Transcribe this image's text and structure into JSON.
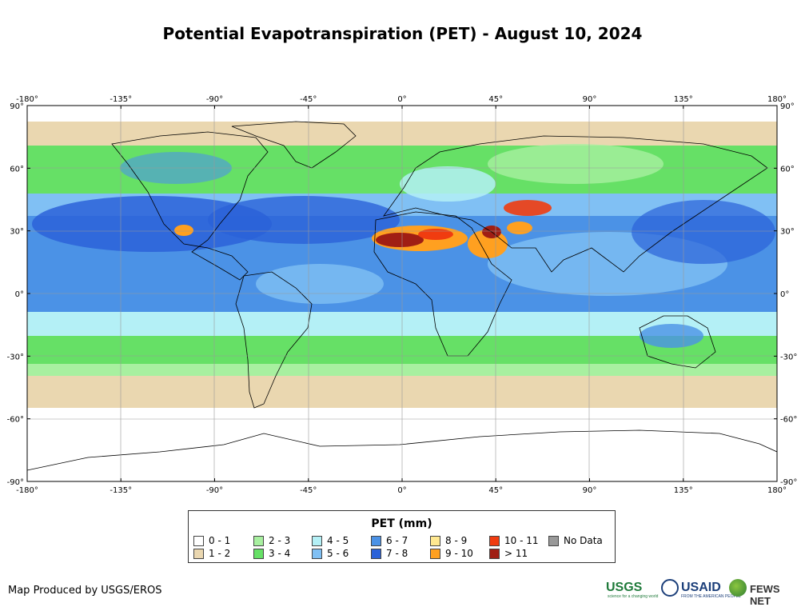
{
  "title": "Potential Evapotranspiration (PET) - August 10, 2024",
  "map": {
    "lon_ticks": [
      "-180°",
      "-135°",
      "-90°",
      "-45°",
      "0°",
      "45°",
      "90°",
      "135°",
      "180°"
    ],
    "lat_ticks": [
      "90°",
      "60°",
      "30°",
      "0°",
      "-30°",
      "-60°",
      "-90°"
    ]
  },
  "legend": {
    "title": "PET (mm)",
    "items": [
      {
        "label": "0 - 1",
        "color": "#ffffff"
      },
      {
        "label": "1 - 2",
        "color": "#ead7b0"
      },
      {
        "label": "2 - 3",
        "color": "#a8f0a0"
      },
      {
        "label": "3 - 4",
        "color": "#66e066"
      },
      {
        "label": "4 - 5",
        "color": "#b4f0f6"
      },
      {
        "label": "5 - 6",
        "color": "#80c0f4"
      },
      {
        "label": "6 - 7",
        "color": "#4b92e6"
      },
      {
        "label": "7 - 8",
        "color": "#2b62d8"
      },
      {
        "label": "8 - 9",
        "color": "#ffe890"
      },
      {
        "label": "9 - 10",
        "color": "#ffa020"
      },
      {
        "label": "10 - 11",
        "color": "#f03c10"
      },
      {
        "label": "> 11",
        "color": "#a01e14"
      },
      {
        "label": "No Data",
        "color": "#999999"
      }
    ]
  },
  "credit": "Map Produced by USGS/EROS",
  "logos": {
    "usgs": "USGS",
    "usgs_tagline": "science for a changing world",
    "usaid": "USAID",
    "usaid_tagline": "FROM THE AMERICAN PEOPLE",
    "fews": "FEWS NET"
  }
}
